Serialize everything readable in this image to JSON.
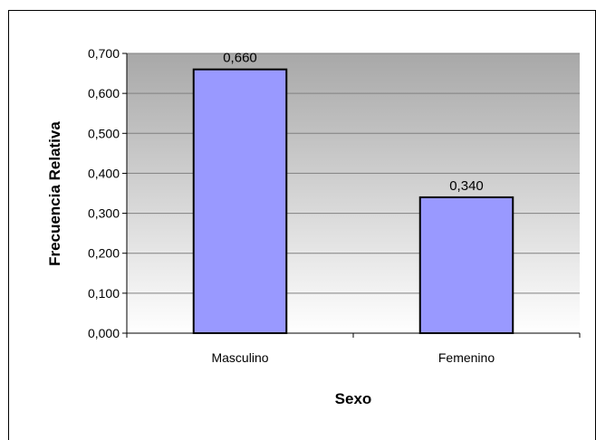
{
  "chart_data": {
    "type": "bar",
    "categories": [
      "Masculino",
      "Femenino"
    ],
    "values": [
      0.66,
      0.34
    ],
    "value_labels": [
      "0,660",
      "0,340"
    ],
    "xlabel": "Sexo",
    "ylabel": "Frecuencia Relativa",
    "ylim": [
      0,
      0.7
    ],
    "yticks": [
      {
        "value": 0.0,
        "label": "0,000"
      },
      {
        "value": 0.1,
        "label": "0,100"
      },
      {
        "value": 0.2,
        "label": "0,200"
      },
      {
        "value": 0.3,
        "label": "0,300"
      },
      {
        "value": 0.4,
        "label": "0,400"
      },
      {
        "value": 0.5,
        "label": "0,500"
      },
      {
        "value": 0.6,
        "label": "0,600"
      },
      {
        "value": 0.7,
        "label": "0,700"
      }
    ],
    "grid": true,
    "legend": "none",
    "colors": {
      "bar_fill": "#9999ff",
      "bar_stroke": "#000000",
      "plot_bg_top": "#a8a8a8",
      "plot_bg_bottom": "#ffffff",
      "grid": "#808080"
    }
  }
}
